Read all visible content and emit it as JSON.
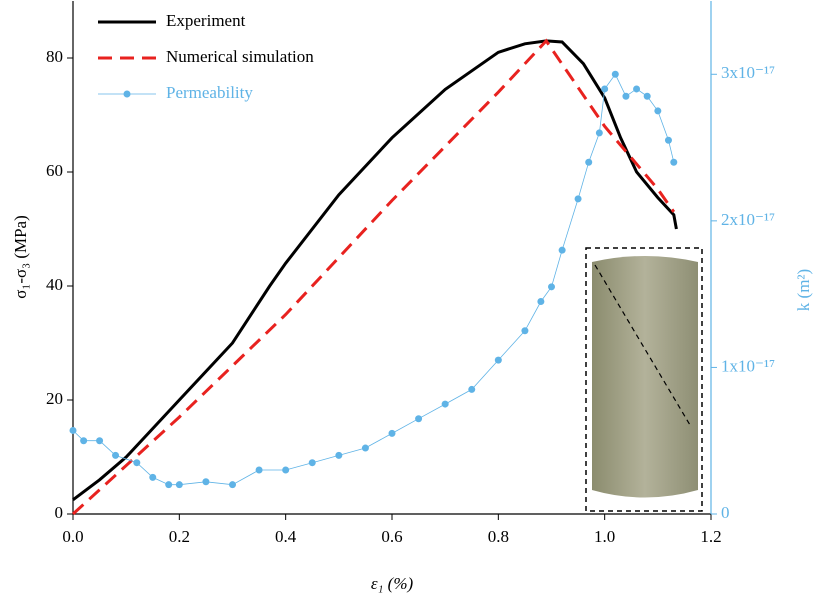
{
  "chart_data": {
    "type": "line",
    "x_label": "ε₁ (%)",
    "y_label": "σ₁-σ₃ (MPa)",
    "y2_label": "k (m²)",
    "xlim": [
      0,
      1.2
    ],
    "xticks": [
      {
        "value": 0,
        "label": "0.0"
      },
      0.2,
      0.4,
      0.6,
      0.8,
      {
        "value": 1,
        "label": "1.0"
      },
      1.2
    ],
    "ylim": [
      0,
      90
    ],
    "yticks": [
      0,
      20,
      40,
      60,
      80
    ],
    "y2lim": [
      0,
      3.5e-17
    ],
    "y2ticks": [
      0,
      {
        "value": 1e-17,
        "label": "1x10⁻¹⁷"
      },
      {
        "value": 2e-17,
        "label": "2x10⁻¹⁷"
      },
      {
        "value": 3e-17,
        "label": "3x10⁻¹⁷"
      }
    ],
    "y2_color": "#5fb3e6",
    "legend": "upper left",
    "series": [
      {
        "name": "Experiment",
        "color": "#000000",
        "line_style": "solid",
        "x": [
          0,
          0.05,
          0.1,
          0.15,
          0.2,
          0.3,
          0.37,
          0.4,
          0.5,
          0.6,
          0.7,
          0.8,
          0.85,
          0.89,
          0.92,
          0.96,
          1.0,
          1.03,
          1.06,
          1.1,
          1.13,
          1.135
        ],
        "values": [
          2.5,
          6,
          10,
          15,
          20,
          30,
          40,
          44,
          56,
          66,
          74.5,
          81,
          82.5,
          83,
          82.8,
          79,
          73,
          66,
          60,
          55.5,
          52.5,
          50
        ]
      },
      {
        "name": "Numerical simulation",
        "color": "#e8221f",
        "line_style": "dashed",
        "x": [
          0,
          0.2,
          0.4,
          0.6,
          0.8,
          0.89,
          1.0,
          1.1,
          1.13
        ],
        "values": [
          0,
          17,
          35,
          55,
          74,
          83,
          68,
          57,
          53
        ]
      },
      {
        "name": "Permeability",
        "color": "#5fb3e6",
        "line_style": "thin",
        "marker": "circle",
        "axis": "y2",
        "x": [
          0,
          0.02,
          0.05,
          0.08,
          0.12,
          0.15,
          0.18,
          0.2,
          0.25,
          0.3,
          0.35,
          0.4,
          0.45,
          0.5,
          0.55,
          0.6,
          0.65,
          0.7,
          0.75,
          0.8,
          0.85,
          0.88,
          0.9,
          0.92,
          0.95,
          0.97,
          0.99,
          1.0,
          1.02,
          1.04,
          1.06,
          1.08,
          1.1,
          1.12,
          1.13
        ],
        "values": [
          5.7e-18,
          5e-18,
          5e-18,
          4e-18,
          3.5e-18,
          2.5e-18,
          2e-18,
          2e-18,
          2.2e-18,
          2e-18,
          3e-18,
          3e-18,
          3.5e-18,
          4e-18,
          4.5e-18,
          5.5e-18,
          6.5e-18,
          7.5e-18,
          8.5e-18,
          1.05e-17,
          1.25e-17,
          1.45e-17,
          1.55e-17,
          1.8e-17,
          2.15e-17,
          2.4e-17,
          2.6e-17,
          2.9e-17,
          3e-17,
          2.85e-17,
          2.9e-17,
          2.85e-17,
          2.75e-17,
          2.55e-17,
          2.4e-17
        ]
      }
    ]
  }
}
